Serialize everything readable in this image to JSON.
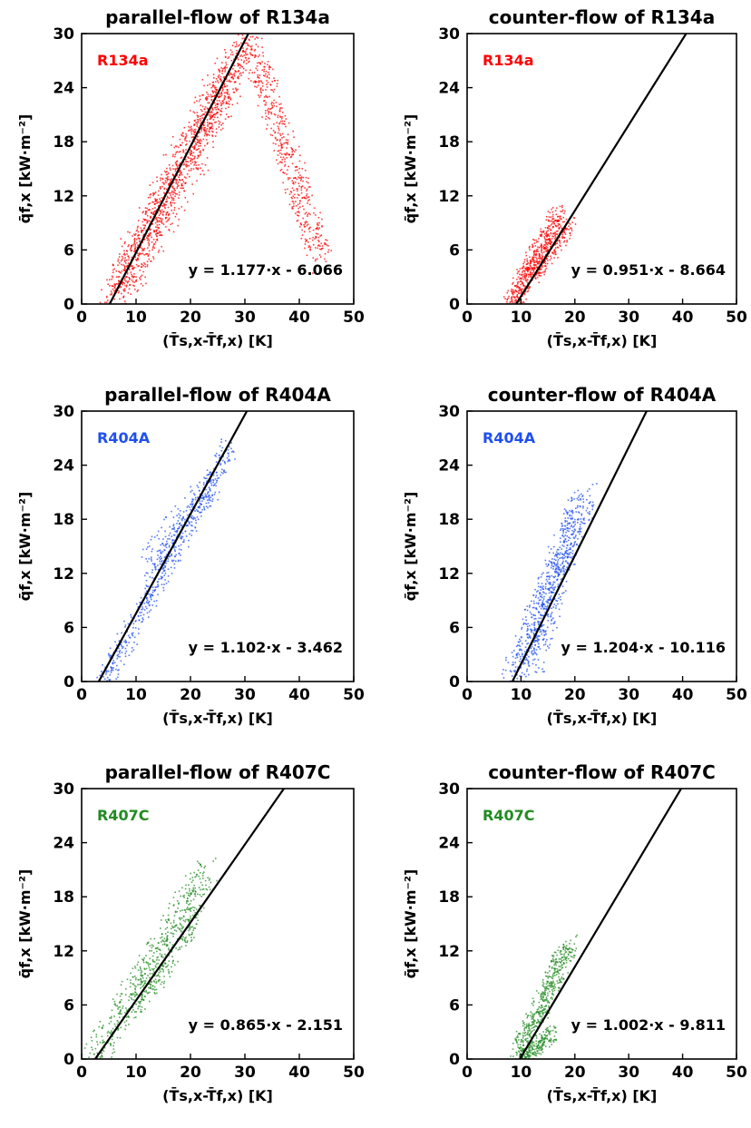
{
  "chart_data": [
    {
      "type": "scatter",
      "title": "parallel-flow of R134a",
      "legend_label": "R134a",
      "color": "#ff0000",
      "fit_equation": "y = 1.177·x - 6.066",
      "fit": {
        "slope": 1.177,
        "intercept": -6.066
      },
      "xlim": [
        0,
        50
      ],
      "ylim": [
        0,
        30
      ],
      "xticks": [
        "0",
        "10",
        "20",
        "30",
        "40",
        "50"
      ],
      "yticks": [
        "0",
        "6",
        "12",
        "18",
        "24",
        "30"
      ],
      "ylabel": "q̄f,x [kW·m⁻²]",
      "xlabel": "(T̄s,x-T̄f,x) [K]",
      "clusters": [
        {
          "x": [
            5,
            30
          ],
          "y": [
            0,
            29
          ],
          "width": 4,
          "n": 900
        },
        {
          "x": [
            31,
            44
          ],
          "y": [
            29,
            5
          ],
          "width": 4,
          "n": 500
        },
        {
          "x": [
            8,
            27
          ],
          "y": [
            3,
            25
          ],
          "width": 6,
          "n": 500
        }
      ]
    },
    {
      "type": "scatter",
      "title": "counter-flow of R134a",
      "legend_label": "R134a",
      "color": "#ff0000",
      "fit_equation": "y = 0.951·x - 8.664",
      "fit": {
        "slope": 0.951,
        "intercept": -8.664
      },
      "xlim": [
        0,
        50
      ],
      "ylim": [
        0,
        30
      ],
      "xticks": [
        "0",
        "10",
        "20",
        "30",
        "40",
        "50"
      ],
      "yticks": [
        "0",
        "6",
        "12",
        "18",
        "24",
        "30"
      ],
      "ylabel": "q̄f,x [kW·m⁻²]",
      "xlabel": "(T̄s,x-T̄f,x) [K]",
      "clusters": [
        {
          "x": [
            8,
            17
          ],
          "y": [
            0,
            10
          ],
          "width": 3,
          "n": 500
        },
        {
          "x": [
            12,
            19
          ],
          "y": [
            3,
            9
          ],
          "width": 2.5,
          "n": 200
        }
      ]
    },
    {
      "type": "scatter",
      "title": "parallel-flow of R404A",
      "legend_label": "R404A",
      "color": "#1f4ff0",
      "fit_equation": "y = 1.102·x - 3.462",
      "fit": {
        "slope": 1.102,
        "intercept": -3.462
      },
      "xlim": [
        0,
        50
      ],
      "ylim": [
        0,
        30
      ],
      "xticks": [
        "0",
        "10",
        "20",
        "30",
        "40",
        "50"
      ],
      "yticks": [
        "0",
        "6",
        "12",
        "18",
        "24",
        "30"
      ],
      "ylabel": "q̄f,x [kW·m⁻²]",
      "xlabel": "(T̄s,x-T̄f,x) [K]",
      "clusters": [
        {
          "x": [
            4,
            27
          ],
          "y": [
            0,
            26
          ],
          "width": 3,
          "n": 500
        },
        {
          "x": [
            12,
            24
          ],
          "y": [
            13,
            22
          ],
          "width": 4,
          "n": 200
        }
      ]
    },
    {
      "type": "scatter",
      "title": "counter-flow of R404A",
      "legend_label": "R404A",
      "color": "#1f4ff0",
      "fit_equation": "y = 1.204·x - 10.116",
      "fit": {
        "slope": 1.204,
        "intercept": -10.116
      },
      "xlim": [
        0,
        50
      ],
      "ylim": [
        0,
        30
      ],
      "xticks": [
        "0",
        "10",
        "20",
        "30",
        "40",
        "50"
      ],
      "yticks": [
        "0",
        "6",
        "12",
        "18",
        "24",
        "30"
      ],
      "ylabel": "q̄f,x [kW·m⁻²]",
      "xlabel": "(T̄s,x-T̄f,x) [K]",
      "clusters": [
        {
          "x": [
            8,
            22
          ],
          "y": [
            0,
            21
          ],
          "width": 4,
          "n": 500
        },
        {
          "x": [
            12,
            20
          ],
          "y": [
            2,
            19
          ],
          "width": 4,
          "n": 300
        }
      ]
    },
    {
      "type": "scatter",
      "title": "parallel-flow of R407C",
      "legend_label": "R407C",
      "color": "#228b22",
      "fit_equation": "y = 0.865·x - 2.151",
      "fit": {
        "slope": 0.865,
        "intercept": -2.151
      },
      "xlim": [
        0,
        50
      ],
      "ylim": [
        0,
        30
      ],
      "xticks": [
        "0",
        "10",
        "20",
        "30",
        "40",
        "50"
      ],
      "yticks": [
        "0",
        "6",
        "12",
        "18",
        "24",
        "30"
      ],
      "ylabel": "q̄f,x [kW·m⁻²]",
      "xlabel": "(T̄s,x-T̄f,x) [K]",
      "clusters": [
        {
          "x": [
            2,
            23
          ],
          "y": [
            0,
            21
          ],
          "width": 4,
          "n": 500
        },
        {
          "x": [
            10,
            21
          ],
          "y": [
            6,
            16
          ],
          "width": 3,
          "n": 200
        }
      ]
    },
    {
      "type": "scatter",
      "title": "counter-flow of R407C",
      "legend_label": "R407C",
      "color": "#228b22",
      "fit_equation": "y = 1.002·x - 9.811",
      "fit": {
        "slope": 1.002,
        "intercept": -9.811
      },
      "xlim": [
        0,
        50
      ],
      "ylim": [
        0,
        30
      ],
      "xticks": [
        "0",
        "10",
        "20",
        "30",
        "40",
        "50"
      ],
      "yticks": [
        "0",
        "6",
        "12",
        "18",
        "24",
        "30"
      ],
      "ylabel": "q̄f,x [kW·m⁻²]",
      "xlabel": "(T̄s,x-T̄f,x) [K]",
      "clusters": [
        {
          "x": [
            9,
            19
          ],
          "y": [
            0,
            13
          ],
          "width": 3,
          "n": 500
        },
        {
          "x": [
            10,
            16
          ],
          "y": [
            0,
            3
          ],
          "width": 2,
          "n": 200
        }
      ]
    }
  ]
}
